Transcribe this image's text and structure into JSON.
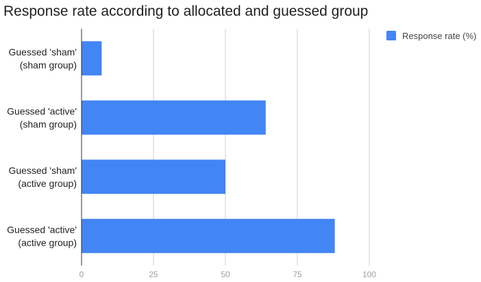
{
  "chart_data": {
    "type": "bar",
    "orientation": "horizontal",
    "title": "Response rate according to allocated and guessed group",
    "categories": [
      [
        "Guessed 'sham'",
        "(sham group)"
      ],
      [
        "Guessed 'active'",
        "(sham group)"
      ],
      [
        "Guessed 'sham'",
        "(active group)"
      ],
      [
        "Guessed 'active'",
        "(active group)"
      ]
    ],
    "series": [
      {
        "name": "Response rate (%)",
        "values": [
          7,
          64,
          50,
          88
        ],
        "color": "#4285f4"
      }
    ],
    "xlim": [
      0,
      100
    ],
    "xticks": [
      0,
      25,
      50,
      75,
      100
    ],
    "xlabel": "",
    "ylabel": "",
    "grid": true,
    "legend": "top-right"
  }
}
